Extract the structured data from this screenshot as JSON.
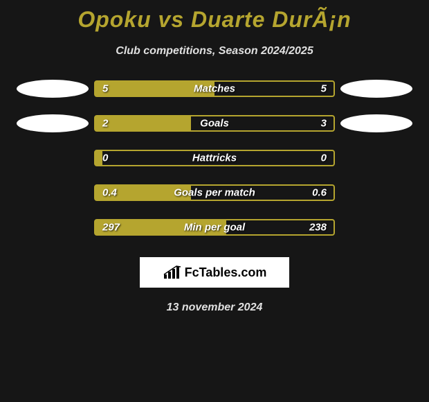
{
  "title": "Opoku vs Duarte DurÃ¡n",
  "subtitle": "Club competitions, Season 2024/2025",
  "background_color": "#161616",
  "accent_color": "#b5a52f",
  "text_color": "#ffffff",
  "oval_color": "#ffffff",
  "bars": [
    {
      "label": "Matches",
      "left_value": "5",
      "right_value": "5",
      "fill_percent": 50,
      "show_left_oval": true,
      "show_right_oval": true
    },
    {
      "label": "Goals",
      "left_value": "2",
      "right_value": "3",
      "fill_percent": 40,
      "show_left_oval": true,
      "show_right_oval": true
    },
    {
      "label": "Hattricks",
      "left_value": "0",
      "right_value": "0",
      "fill_percent": 3,
      "show_left_oval": false,
      "show_right_oval": false
    },
    {
      "label": "Goals per match",
      "left_value": "0.4",
      "right_value": "0.6",
      "fill_percent": 40,
      "show_left_oval": false,
      "show_right_oval": false
    },
    {
      "label": "Min per goal",
      "left_value": "297",
      "right_value": "238",
      "fill_percent": 55,
      "show_left_oval": false,
      "show_right_oval": false
    }
  ],
  "footer_brand": "FcTables.com",
  "date": "13 november 2024"
}
